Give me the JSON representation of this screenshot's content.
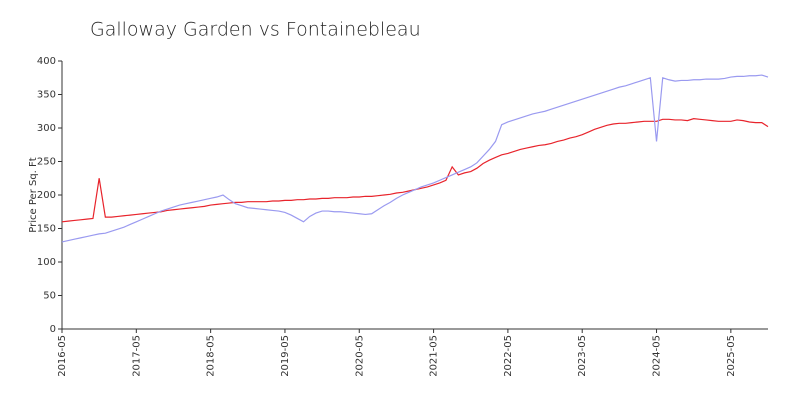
{
  "chart_data": {
    "type": "line",
    "title": "Galloway Garden vs Fontainebleau",
    "y_label": "Price Per Sq. Ft",
    "x": [
      "2016-05",
      "2016-06",
      "2016-07",
      "2016-08",
      "2016-09",
      "2016-10",
      "2016-11",
      "2016-12",
      "2017-01",
      "2017-02",
      "2017-03",
      "2017-04",
      "2017-05",
      "2017-06",
      "2017-07",
      "2017-08",
      "2017-09",
      "2017-10",
      "2017-11",
      "2017-12",
      "2018-01",
      "2018-02",
      "2018-03",
      "2018-04",
      "2018-05",
      "2018-06",
      "2018-07",
      "2018-08",
      "2018-09",
      "2018-10",
      "2018-11",
      "2018-12",
      "2019-01",
      "2019-02",
      "2019-03",
      "2019-04",
      "2019-05",
      "2019-06",
      "2019-07",
      "2019-08",
      "2019-09",
      "2019-10",
      "2019-11",
      "2019-12",
      "2020-01",
      "2020-02",
      "2020-03",
      "2020-04",
      "2020-05",
      "2020-06",
      "2020-07",
      "2020-08",
      "2020-09",
      "2020-10",
      "2020-11",
      "2020-12",
      "2021-01",
      "2021-02",
      "2021-03",
      "2021-04",
      "2021-05",
      "2021-06",
      "2021-07",
      "2021-08",
      "2021-09",
      "2021-10",
      "2021-11",
      "2021-12",
      "2022-01",
      "2022-02",
      "2022-03",
      "2022-04",
      "2022-05",
      "2022-06",
      "2022-07",
      "2022-08",
      "2022-09",
      "2022-10",
      "2022-11",
      "2022-12",
      "2023-01",
      "2023-02",
      "2023-03",
      "2023-04",
      "2023-05",
      "2023-06",
      "2023-07",
      "2023-08",
      "2023-09",
      "2023-10",
      "2023-11",
      "2023-12",
      "2024-01",
      "2024-02",
      "2024-03",
      "2024-04",
      "2024-05",
      "2024-06",
      "2024-07",
      "2024-08",
      "2024-09",
      "2024-10",
      "2024-11",
      "2024-12",
      "2025-01",
      "2025-02",
      "2025-03",
      "2025-04",
      "2025-05",
      "2025-06",
      "2025-07",
      "2025-08",
      "2025-09",
      "2025-10",
      "2025-11"
    ],
    "xticks": [
      "2016-05",
      "2017-05",
      "2018-05",
      "2019-05",
      "2020-05",
      "2021-05",
      "2022-05",
      "2023-05",
      "2024-05",
      "2025-05"
    ],
    "series": [
      {
        "color": "#e8242c",
        "values": [
          160,
          161,
          162,
          163,
          164,
          165,
          225,
          167,
          167,
          168,
          169,
          170,
          171,
          172,
          173,
          174,
          175,
          177,
          178,
          179,
          180,
          181,
          182,
          183,
          185,
          186,
          187,
          188,
          189,
          189,
          190,
          190,
          190,
          190,
          191,
          191,
          192,
          192,
          193,
          193,
          194,
          194,
          195,
          195,
          196,
          196,
          196,
          197,
          197,
          198,
          198,
          199,
          200,
          201,
          203,
          204,
          206,
          208,
          210,
          212,
          215,
          218,
          222,
          242,
          230,
          233,
          235,
          240,
          247,
          252,
          256,
          260,
          262,
          265,
          268,
          270,
          272,
          274,
          275,
          277,
          280,
          282,
          285,
          287,
          290,
          294,
          298,
          301,
          304,
          306,
          307,
          307,
          308,
          309,
          310,
          310,
          310,
          313,
          313,
          312,
          312,
          311,
          314,
          313,
          312,
          311,
          310,
          310,
          310,
          312,
          311,
          309,
          308,
          308,
          302
        ]
      },
      {
        "color": "#9a9af0",
        "values": [
          130,
          132,
          134,
          136,
          138,
          140,
          142,
          143,
          146,
          149,
          152,
          156,
          160,
          164,
          168,
          172,
          176,
          179,
          182,
          185,
          187,
          189,
          191,
          193,
          195,
          197,
          200,
          193,
          187,
          184,
          181,
          180,
          179,
          178,
          177,
          176,
          174,
          170,
          165,
          160,
          168,
          173,
          176,
          176,
          175,
          175,
          174,
          173,
          172,
          171,
          172,
          178,
          184,
          189,
          195,
          200,
          204,
          208,
          212,
          215,
          218,
          222,
          226,
          230,
          234,
          238,
          242,
          248,
          258,
          268,
          280,
          305,
          309,
          312,
          315,
          318,
          321,
          323,
          325,
          328,
          331,
          334,
          337,
          340,
          343,
          346,
          349,
          352,
          355,
          358,
          361,
          363,
          366,
          369,
          372,
          375,
          280,
          375,
          372,
          370,
          371,
          371,
          372,
          372,
          373,
          373,
          373,
          374,
          376,
          377,
          377,
          378,
          378,
          379,
          376
        ]
      }
    ],
    "ylim": [
      0,
      400
    ],
    "yticks": [
      0,
      50,
      100,
      150,
      200,
      250,
      300,
      350,
      400
    ]
  }
}
